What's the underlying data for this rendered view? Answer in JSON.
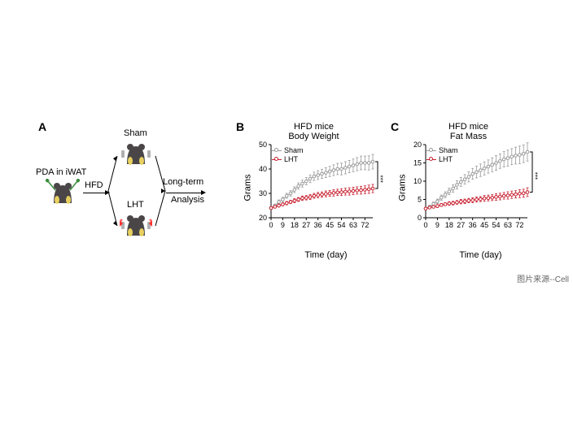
{
  "panelA": {
    "label": "A",
    "pda_text": "PDA in iWAT",
    "hfd_text": "HFD",
    "sham_text": "Sham",
    "lht_text": "LHT",
    "longterm_text": "Long-term",
    "analysis_text": "Analysis"
  },
  "panelB": {
    "label": "B",
    "title1": "HFD mice",
    "title2": "Body Weight",
    "ylabel": "Grams",
    "xlabel": "Time (day)",
    "xlim": [
      0,
      78
    ],
    "ylim": [
      20,
      50
    ],
    "xticks": [
      0,
      9,
      18,
      27,
      36,
      45,
      54,
      63,
      72
    ],
    "yticks": [
      20,
      30,
      40,
      50
    ],
    "legend_sham": "Sham",
    "legend_lht": "LHT",
    "color_sham": "#9a9a9a",
    "color_lht": "#c8202f",
    "sham_data": [
      24,
      25,
      26.5,
      27.5,
      29,
      30,
      31.5,
      33,
      34,
      35,
      36,
      37,
      37.5,
      38,
      38.5,
      39,
      39.5,
      40,
      40,
      40.5,
      41,
      41.5,
      42,
      42.5,
      42.5,
      42.5,
      43
    ],
    "lht_data": [
      24,
      24.5,
      25,
      25.5,
      26,
      26.5,
      27,
      27.5,
      28,
      28.2,
      28.5,
      29,
      29.3,
      29.5,
      29.8,
      30,
      30.2,
      30.4,
      30.5,
      30.7,
      30.8,
      31,
      31.2,
      31.3,
      31.5,
      31.7,
      32
    ],
    "sham_err": [
      0.5,
      0.6,
      0.8,
      0.9,
      1,
      1.1,
      1.2,
      1.3,
      1.4,
      1.5,
      1.6,
      1.7,
      1.8,
      1.9,
      2,
      2.1,
      2.2,
      2.3,
      2.4,
      2.5,
      2.5,
      2.6,
      2.7,
      2.8,
      2.8,
      2.9,
      3
    ],
    "lht_err": [
      0.5,
      0.5,
      0.6,
      0.6,
      0.7,
      0.7,
      0.8,
      0.8,
      0.9,
      0.9,
      1,
      1,
      1.1,
      1.1,
      1.2,
      1.2,
      1.3,
      1.3,
      1.4,
      1.4,
      1.5,
      1.5,
      1.5,
      1.6,
      1.6,
      1.7,
      1.7
    ],
    "sig": "***"
  },
  "panelC": {
    "label": "C",
    "title1": "HFD mice",
    "title2": "Fat Mass",
    "ylabel": "Grams",
    "xlabel": "Time (day)",
    "xlim": [
      0,
      78
    ],
    "ylim": [
      0,
      20
    ],
    "xticks": [
      0,
      9,
      18,
      27,
      36,
      45,
      54,
      63,
      72
    ],
    "yticks": [
      0,
      5,
      10,
      15,
      20
    ],
    "legend_sham": "Sham",
    "legend_lht": "LHT",
    "color_sham": "#9a9a9a",
    "color_lht": "#c8202f",
    "sham_data": [
      2.5,
      3,
      3.8,
      4.5,
      5.5,
      6.3,
      7.2,
      8,
      9,
      9.8,
      10.5,
      11.2,
      12,
      12.5,
      13,
      13.5,
      14,
      14.5,
      15,
      15.5,
      16,
      16.3,
      16.7,
      17,
      17.2,
      17.5,
      18
    ],
    "lht_data": [
      2.5,
      2.8,
      3,
      3.2,
      3.5,
      3.7,
      3.9,
      4,
      4.2,
      4.4,
      4.5,
      4.7,
      4.8,
      5,
      5.1,
      5.3,
      5.4,
      5.5,
      5.7,
      5.8,
      6,
      6.1,
      6.3,
      6.4,
      6.6,
      6.7,
      7
    ],
    "sham_err": [
      0.3,
      0.4,
      0.5,
      0.6,
      0.7,
      0.8,
      0.9,
      1,
      1.1,
      1.2,
      1.3,
      1.4,
      1.5,
      1.6,
      1.7,
      1.8,
      1.8,
      1.9,
      2,
      2,
      2.1,
      2.2,
      2.2,
      2.3,
      2.4,
      2.4,
      2.5
    ],
    "lht_err": [
      0.3,
      0.3,
      0.3,
      0.4,
      0.4,
      0.4,
      0.5,
      0.5,
      0.5,
      0.6,
      0.6,
      0.6,
      0.7,
      0.7,
      0.7,
      0.8,
      0.8,
      0.8,
      0.9,
      0.9,
      0.9,
      1,
      1,
      1,
      1.1,
      1.1,
      1.2
    ],
    "sig": "***"
  },
  "source": "图片来源--Cell"
}
